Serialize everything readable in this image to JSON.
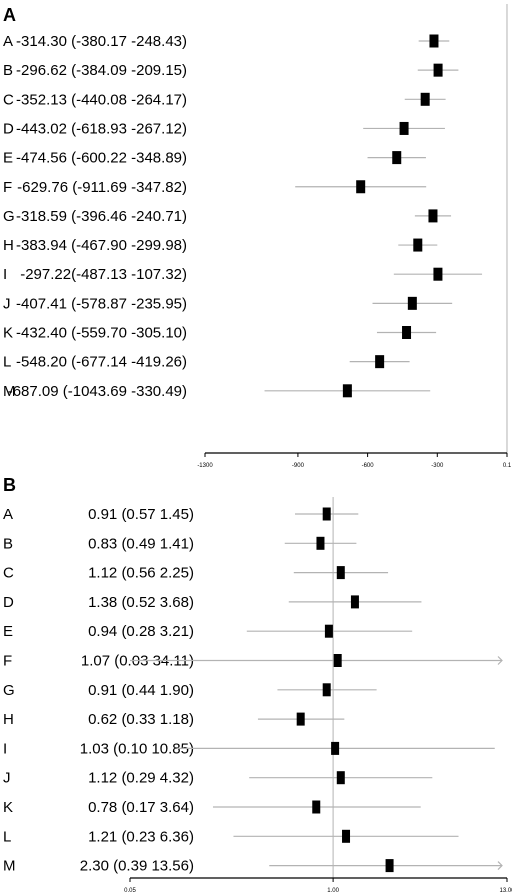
{
  "chart_data": [
    {
      "panel": "A",
      "type": "forest",
      "scale": "linear",
      "rows": [
        {
          "label": "A",
          "text": "-314.30 (-380.17 -248.43)",
          "est": -314.3,
          "lo": -380.17,
          "hi": -248.43
        },
        {
          "label": "B",
          "text": "-296.62 (-384.09 -209.15)",
          "est": -296.62,
          "lo": -384.09,
          "hi": -209.15
        },
        {
          "label": "C",
          "text": "-352.13 (-440.08 -264.17)",
          "est": -352.13,
          "lo": -440.08,
          "hi": -264.17
        },
        {
          "label": "D",
          "text": "-443.02 (-618.93 -267.12)",
          "est": -443.02,
          "lo": -618.93,
          "hi": -267.12
        },
        {
          "label": "E",
          "text": "-474.56 (-600.22 -348.89)",
          "est": -474.56,
          "lo": -600.22,
          "hi": -348.89
        },
        {
          "label": "F",
          "text": "-629.76 (-911.69 -347.82)",
          "est": -629.76,
          "lo": -911.69,
          "hi": -347.82
        },
        {
          "label": "G",
          "text": "-318.59 (-396.46 -240.71)",
          "est": -318.59,
          "lo": -396.46,
          "hi": -240.71
        },
        {
          "label": "H",
          "text": "-383.94 (-467.90 -299.98)",
          "est": -383.94,
          "lo": -467.9,
          "hi": -299.98
        },
        {
          "label": "I",
          "text": "-297.22(-487.13 -107.32)",
          "est": -297.22,
          "lo": -487.13,
          "hi": -107.32
        },
        {
          "label": "J",
          "text": "-407.41 (-578.87 -235.95)",
          "est": -407.41,
          "lo": -578.87,
          "hi": -235.95
        },
        {
          "label": "K",
          "text": "-432.40 (-559.70 -305.10)",
          "est": -432.4,
          "lo": -559.7,
          "hi": -305.1
        },
        {
          "label": "L",
          "text": "-548.20 (-677.14 -419.26)",
          "est": -548.2,
          "lo": -677.14,
          "hi": -419.26
        },
        {
          "label": "M",
          "text": "-687.09 (-1043.69 -330.49)",
          "est": -687.09,
          "lo": -1043.69,
          "hi": -330.49
        }
      ],
      "xlim": [
        -1300,
        0.1
      ],
      "ticks": [
        -1300,
        -900,
        -600,
        -300,
        0.1
      ],
      "tick_labels": [
        "-1300",
        "-900",
        "-600",
        "-300",
        "0.1"
      ],
      "reference_line": 0,
      "colors": {
        "marker": "#000000",
        "ci": "#b3b3b3",
        "reference": "#b3b3b3",
        "axis": "#000000"
      }
    },
    {
      "panel": "B",
      "type": "forest",
      "scale": "log",
      "rows": [
        {
          "label": "A",
          "text": "0.91 (0.57 1.45)",
          "est": 0.91,
          "lo": 0.57,
          "hi": 1.45
        },
        {
          "label": "B",
          "text": "0.83 (0.49 1.41)",
          "est": 0.83,
          "lo": 0.49,
          "hi": 1.41
        },
        {
          "label": "C",
          "text": "1.12 (0.56 2.25)",
          "est": 1.12,
          "lo": 0.56,
          "hi": 2.25
        },
        {
          "label": "D",
          "text": "1.38 (0.52 3.68)",
          "est": 1.38,
          "lo": 0.52,
          "hi": 3.68
        },
        {
          "label": "E",
          "text": "0.94 (0.28 3.21)",
          "est": 0.94,
          "lo": 0.28,
          "hi": 3.21
        },
        {
          "label": "F",
          "text": "1.07 (0.03 34.11)",
          "est": 1.07,
          "lo": 0.03,
          "hi": 34.11
        },
        {
          "label": "G",
          "text": "0.91 (0.44 1.90)",
          "est": 0.91,
          "lo": 0.44,
          "hi": 1.9
        },
        {
          "label": "H",
          "text": "0.62 (0.33 1.18)",
          "est": 0.62,
          "lo": 0.33,
          "hi": 1.18
        },
        {
          "label": "I",
          "text": "1.03 (0.10 10.85)",
          "est": 1.03,
          "lo": 0.1,
          "hi": 10.85
        },
        {
          "label": "J",
          "text": "1.12 (0.29 4.32)",
          "est": 1.12,
          "lo": 0.29,
          "hi": 4.32
        },
        {
          "label": "K",
          "text": "0.78 (0.17 3.64)",
          "est": 0.78,
          "lo": 0.17,
          "hi": 3.64
        },
        {
          "label": "L",
          "text": "1.21 (0.23 6.36)",
          "est": 1.21,
          "lo": 0.23,
          "hi": 6.36
        },
        {
          "label": "M",
          "text": "2.30 (0.39 13.56)",
          "est": 2.3,
          "lo": 0.39,
          "hi": 13.56
        }
      ],
      "xlim": [
        0.05,
        13
      ],
      "ticks": [
        0.05,
        1,
        13
      ],
      "tick_labels": [
        "0.05",
        "1.00",
        "13.00"
      ],
      "reference_line": 1,
      "colors": {
        "marker": "#000000",
        "ci": "#b3b3b3",
        "reference": "#b3b3b3",
        "axis": "#000000"
      }
    }
  ]
}
